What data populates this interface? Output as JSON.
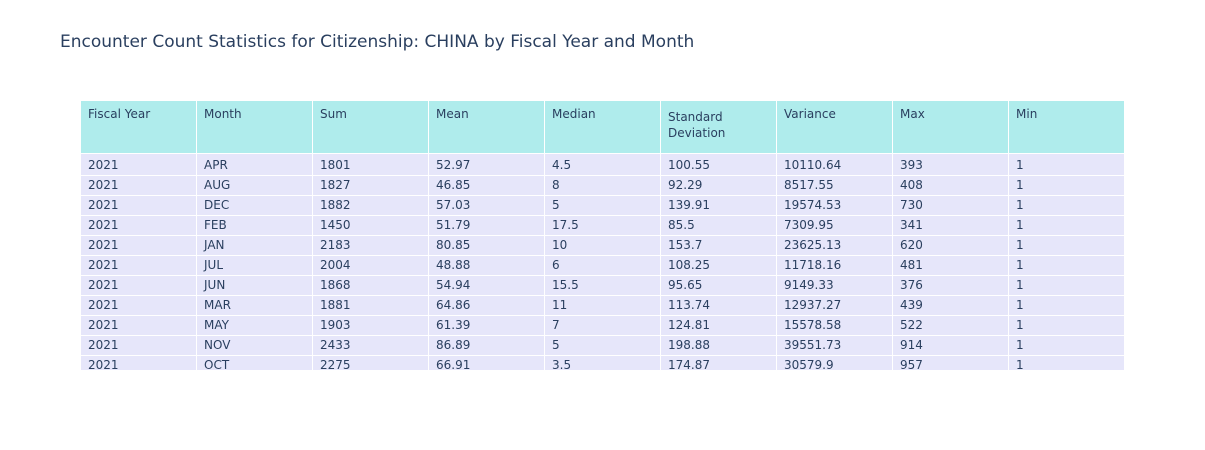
{
  "chart_data": {
    "type": "table",
    "title": "Encounter Count Statistics for Citizenship: CHINA by Fiscal Year and Month",
    "columns": [
      "Fiscal Year",
      "Month",
      "Sum",
      "Mean",
      "Median",
      "Standard Deviation",
      "Variance",
      "Max",
      "Min"
    ],
    "rows": [
      [
        "2021",
        "APR",
        "1801",
        "52.97",
        "4.5",
        "100.55",
        "10110.64",
        "393",
        "1"
      ],
      [
        "2021",
        "AUG",
        "1827",
        "46.85",
        "8",
        "92.29",
        "8517.55",
        "408",
        "1"
      ],
      [
        "2021",
        "DEC",
        "1882",
        "57.03",
        "5",
        "139.91",
        "19574.53",
        "730",
        "1"
      ],
      [
        "2021",
        "FEB",
        "1450",
        "51.79",
        "17.5",
        "85.5",
        "7309.95",
        "341",
        "1"
      ],
      [
        "2021",
        "JAN",
        "2183",
        "80.85",
        "10",
        "153.7",
        "23625.13",
        "620",
        "1"
      ],
      [
        "2021",
        "JUL",
        "2004",
        "48.88",
        "6",
        "108.25",
        "11718.16",
        "481",
        "1"
      ],
      [
        "2021",
        "JUN",
        "1868",
        "54.94",
        "15.5",
        "95.65",
        "9149.33",
        "376",
        "1"
      ],
      [
        "2021",
        "MAR",
        "1881",
        "64.86",
        "11",
        "113.74",
        "12937.27",
        "439",
        "1"
      ],
      [
        "2021",
        "MAY",
        "1903",
        "61.39",
        "7",
        "124.81",
        "15578.58",
        "522",
        "1"
      ],
      [
        "2021",
        "NOV",
        "2433",
        "86.89",
        "5",
        "198.88",
        "39551.73",
        "914",
        "1"
      ],
      [
        "2021",
        "OCT",
        "2275",
        "66.91",
        "3.5",
        "174.87",
        "30579.9",
        "957",
        "1"
      ]
    ],
    "colors": {
      "header_fill": "#afecec",
      "cell_fill": "#e6e6fa",
      "text": "#2a3f5f"
    }
  }
}
